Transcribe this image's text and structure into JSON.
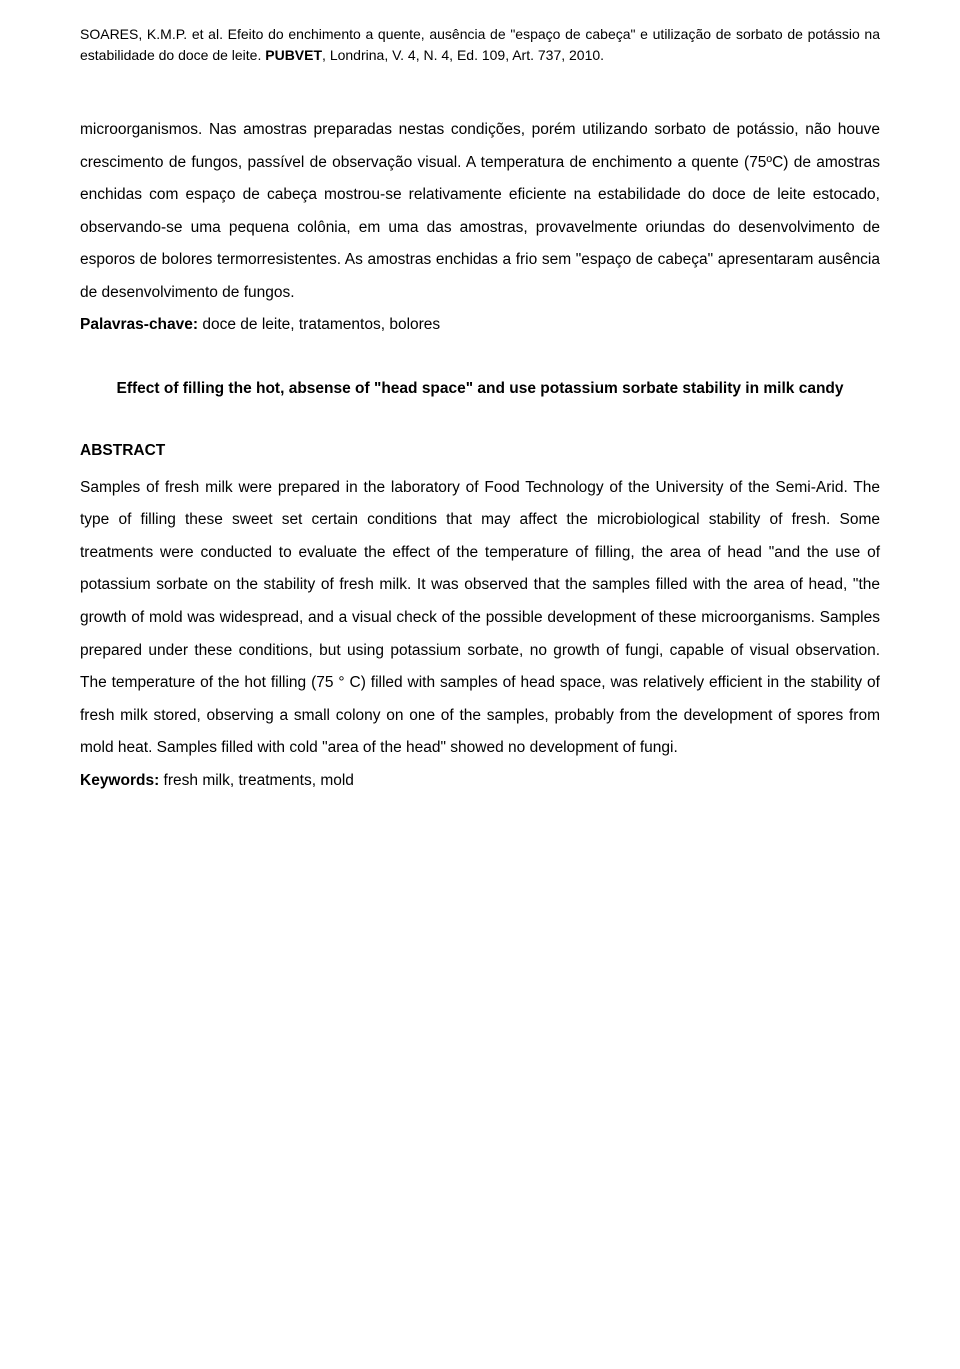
{
  "citation": {
    "authors": "SOARES, K.M.P. et al. ",
    "title": "Efeito do enchimento a quente, ausência de \"espaço de cabeça\" e utilização de sorbato de potássio na estabilidade do doce de leite. ",
    "journal": "PUBVET",
    "details": ", Londrina, V. 4, N. 4, Ed. 109, Art. 737, 2010."
  },
  "resumo_body": "microorganismos. Nas amostras preparadas nestas condições, porém utilizando sorbato de potássio, não houve crescimento de fungos, passível de observação visual. A temperatura de enchimento a quente (75ºC) de amostras enchidas com espaço de cabeça mostrou-se relativamente eficiente na estabilidade do doce de leite estocado, observando-se uma pequena colônia, em uma das amostras, provavelmente oriundas do desenvolvimento de esporos de bolores termorresistentes. As amostras enchidas a frio sem \"espaço de cabeça\" apresentaram ausência de desenvolvimento de fungos.",
  "palavras_chave": {
    "label": "Palavras-chave:",
    "value": " doce de leite, tratamentos, bolores"
  },
  "english_title": "Effect of filling the hot, absense of \"head space\" and use potassium sorbate stability in milk candy",
  "abstract": {
    "heading": "ABSTRACT",
    "body": "Samples of fresh milk were prepared in the laboratory of Food Technology of the University of the Semi-Arid. The type of filling these sweet set certain conditions that may affect the microbiological stability of fresh. Some treatments were conducted to evaluate the effect of the temperature of filling, the area of head \"and the use of potassium sorbate on the stability of fresh milk. It was observed that the samples filled with the area of head, \"the growth of mold was widespread, and a visual check of the possible development of these microorganisms. Samples prepared under these conditions, but using potassium sorbate, no growth of fungi, capable of visual observation. The temperature of the hot filling (75 ° C) filled with samples of head space, was relatively efficient in the stability of fresh milk stored, observing a small colony on one of the samples, probably from the development of spores from mold heat. Samples filled with cold \"area of the head\" showed no development of fungi."
  },
  "keywords_en": {
    "label": "Keywords:",
    "value": " fresh milk, treatments, mold"
  },
  "colors": {
    "background": "#ffffff",
    "text": "#000000"
  },
  "typography": {
    "font_family": "Verdana",
    "citation_fontsize": 14,
    "body_fontsize": 15.5,
    "line_height": 2.1
  }
}
